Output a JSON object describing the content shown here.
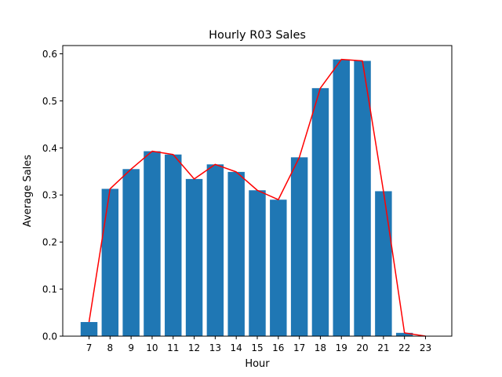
{
  "chart_data": {
    "type": "bar",
    "title": "Hourly R03 Sales",
    "xlabel": "Hour",
    "ylabel": "Average Sales",
    "categories": [
      7,
      8,
      9,
      10,
      11,
      12,
      13,
      14,
      15,
      16,
      17,
      18,
      19,
      20,
      21,
      22,
      23
    ],
    "series": [
      {
        "type": "bar",
        "color": "#1f77b4",
        "values": [
          0.03,
          0.313,
          0.355,
          0.393,
          0.386,
          0.334,
          0.365,
          0.349,
          0.31,
          0.29,
          0.38,
          0.527,
          0.588,
          0.585,
          0.308,
          0.007,
          0.0
        ]
      },
      {
        "type": "line",
        "color": "#ff0000",
        "values": [
          0.03,
          0.313,
          0.355,
          0.393,
          0.386,
          0.334,
          0.365,
          0.349,
          0.31,
          0.29,
          0.38,
          0.527,
          0.588,
          0.585,
          0.308,
          0.007,
          0.0
        ]
      }
    ],
    "ylim": [
      0.0,
      0.6175
    ],
    "y_ticks": [
      0.0,
      0.1,
      0.2,
      0.3,
      0.4,
      0.5,
      0.6
    ],
    "y_tick_labels": [
      "0.0",
      "0.1",
      "0.2",
      "0.3",
      "0.4",
      "0.5",
      "0.6"
    ],
    "x_tick_labels": [
      "7",
      "8",
      "9",
      "10",
      "11",
      "12",
      "13",
      "14",
      "15",
      "16",
      "17",
      "18",
      "19",
      "20",
      "21",
      "22",
      "23"
    ],
    "grid": false,
    "legend": "none"
  }
}
